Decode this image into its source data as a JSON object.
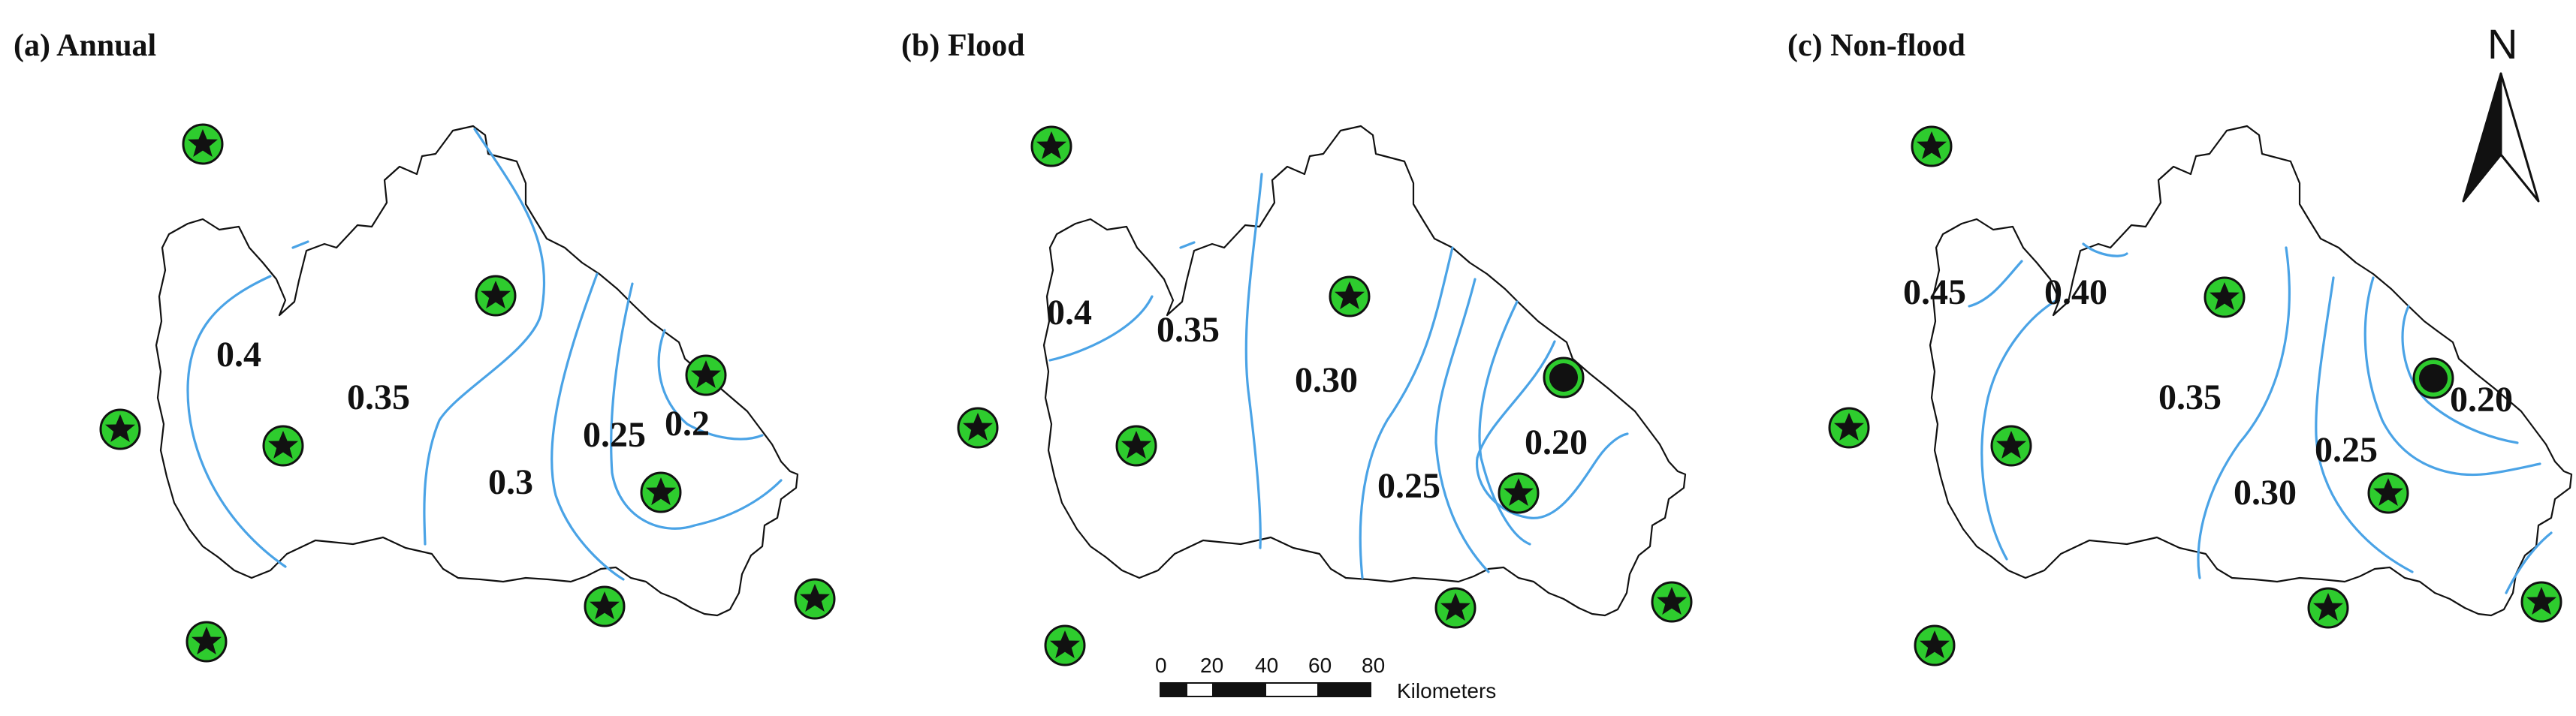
{
  "panels": [
    {
      "title": "(a) Annual",
      "isolines": [
        "0.4",
        "0.35",
        "0.3",
        "0.25",
        "0.2"
      ]
    },
    {
      "title": "(b) Flood",
      "isolines": [
        "0.4",
        "0.35",
        "0.30",
        "0.25",
        "0.20"
      ]
    },
    {
      "title": "(c) Non-flood",
      "isolines": [
        "0.45",
        "0.40",
        "0.35",
        "0.30",
        "0.25",
        "0.20"
      ]
    }
  ],
  "north_arrow": {
    "label": "N"
  },
  "scale_bar": {
    "ticks": [
      "0",
      "20",
      "40",
      "60",
      "80"
    ],
    "unit": "Kilometers"
  },
  "colors": {
    "isoline": "#4aa3e6",
    "station_fill": "#2ecc2e",
    "outline": "#111111"
  },
  "symbols": {
    "station": "star-in-circle-icon",
    "special_station": "filled-dot-icon"
  }
}
